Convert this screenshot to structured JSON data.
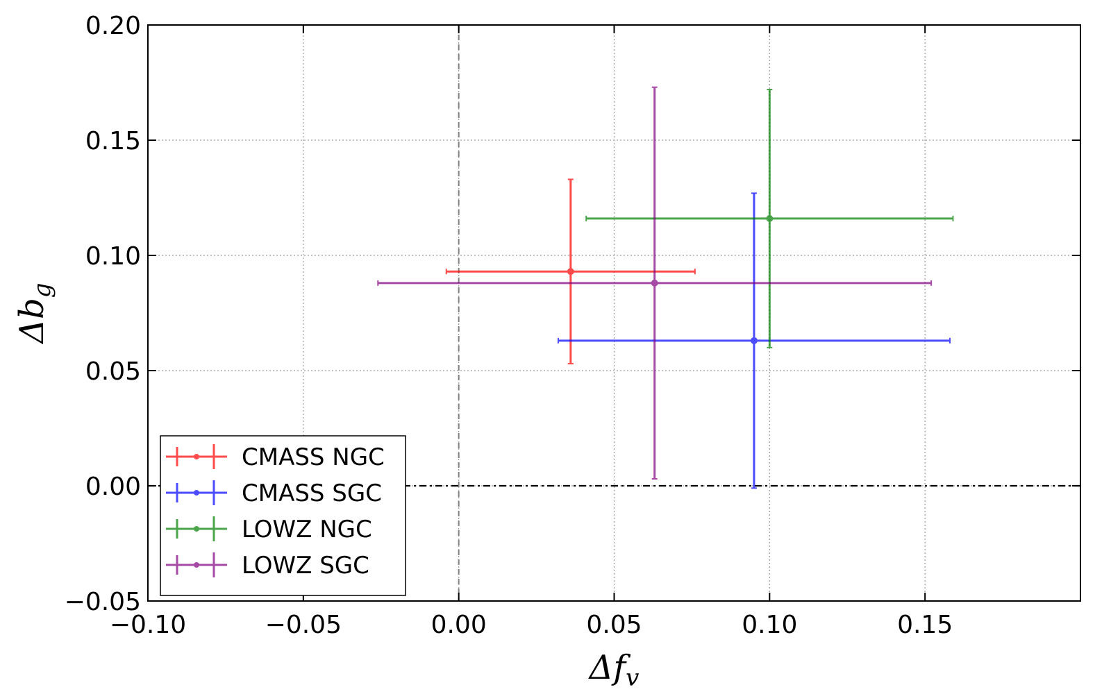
{
  "chart_data": {
    "type": "scatter",
    "title": "",
    "xlabel": "Δf",
    "xlabel_sub": "v",
    "ylabel": "Δb",
    "ylabel_sub": "g",
    "xlim": [
      -0.1,
      0.2
    ],
    "ylim": [
      -0.05,
      0.2
    ],
    "grid": true,
    "legend_position": "lower-left",
    "xticks": [
      {
        "value": -0.1,
        "label": "−0.10"
      },
      {
        "value": -0.05,
        "label": "−0.05"
      },
      {
        "value": 0.0,
        "label": "0.00"
      },
      {
        "value": 0.05,
        "label": "0.05"
      },
      {
        "value": 0.1,
        "label": "0.10"
      },
      {
        "value": 0.15,
        "label": "0.15"
      }
    ],
    "yticks": [
      {
        "value": -0.05,
        "label": "−0.05"
      },
      {
        "value": 0.0,
        "label": "0.00"
      },
      {
        "value": 0.05,
        "label": "0.05"
      },
      {
        "value": 0.1,
        "label": "0.10"
      },
      {
        "value": 0.15,
        "label": "0.15"
      },
      {
        "value": 0.2,
        "label": "0.20"
      }
    ],
    "reference_lines": [
      {
        "orientation": "vertical",
        "value": 0.0,
        "style": "dashed",
        "color": "#808080"
      },
      {
        "orientation": "horizontal",
        "value": 0.0,
        "style": "dashdot",
        "color": "#000000"
      }
    ],
    "series": [
      {
        "name": "CMASS NGC",
        "color": "#ff0000",
        "x": 0.036,
        "y": 0.093,
        "xerr": [
          0.04,
          0.04
        ],
        "yerr": [
          0.04,
          0.04
        ]
      },
      {
        "name": "CMASS SGC",
        "color": "#0000ff",
        "x": 0.095,
        "y": 0.063,
        "xerr": [
          0.063,
          0.063
        ],
        "yerr": [
          0.064,
          0.064
        ]
      },
      {
        "name": "LOWZ NGC",
        "color": "#008000",
        "x": 0.1,
        "y": 0.116,
        "xerr": [
          0.059,
          0.059
        ],
        "yerr": [
          0.056,
          0.056
        ]
      },
      {
        "name": "LOWZ SGC",
        "color": "#800080",
        "x": 0.063,
        "y": 0.088,
        "xerr": [
          0.089,
          0.089
        ],
        "yerr": [
          0.085,
          0.085
        ]
      }
    ]
  }
}
